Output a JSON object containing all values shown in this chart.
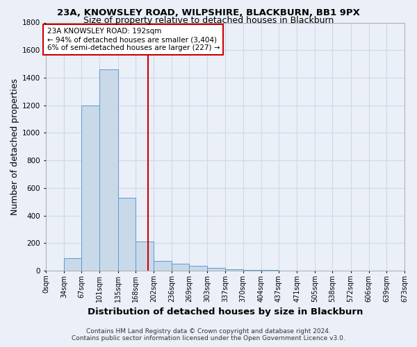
{
  "title1": "23A, KNOWSLEY ROAD, WILPSHIRE, BLACKBURN, BB1 9PX",
  "title2": "Size of property relative to detached houses in Blackburn",
  "xlabel": "Distribution of detached houses by size in Blackburn",
  "ylabel": "Number of detached properties",
  "bin_edges": [
    0,
    34,
    67,
    101,
    135,
    168,
    202,
    236,
    269,
    303,
    337,
    370,
    404,
    437,
    471,
    505,
    538,
    572,
    606,
    639,
    673
  ],
  "bar_heights": [
    0,
    90,
    1200,
    1460,
    530,
    210,
    70,
    50,
    35,
    20,
    8,
    5,
    3,
    2,
    1,
    1,
    0,
    0,
    0,
    0
  ],
  "bar_color": "#c9d9e8",
  "bar_edge_color": "#5b9bd5",
  "property_size": 192,
  "vline_color": "#cc0000",
  "annotation_text": "23A KNOWSLEY ROAD: 192sqm\n← 94% of detached houses are smaller (3,404)\n6% of semi-detached houses are larger (227) →",
  "annotation_box_color": "#ffffff",
  "annotation_box_edge": "#cc0000",
  "ylim": [
    0,
    1800
  ],
  "tick_labels": [
    "0sqm",
    "34sqm",
    "67sqm",
    "101sqm",
    "135sqm",
    "168sqm",
    "202sqm",
    "236sqm",
    "269sqm",
    "303sqm",
    "337sqm",
    "370sqm",
    "404sqm",
    "437sqm",
    "471sqm",
    "505sqm",
    "538sqm",
    "572sqm",
    "606sqm",
    "639sqm",
    "673sqm"
  ],
  "footer": "Contains HM Land Registry data © Crown copyright and database right 2024.\nContains public sector information licensed under the Open Government Licence v3.0.",
  "bg_color": "#eaeff8",
  "grid_color": "#d0d8e8",
  "title1_fontsize": 9.5,
  "title2_fontsize": 9,
  "axis_label_fontsize": 9,
  "tick_fontsize": 7,
  "footer_fontsize": 6.5,
  "annotation_fontsize": 7.5
}
